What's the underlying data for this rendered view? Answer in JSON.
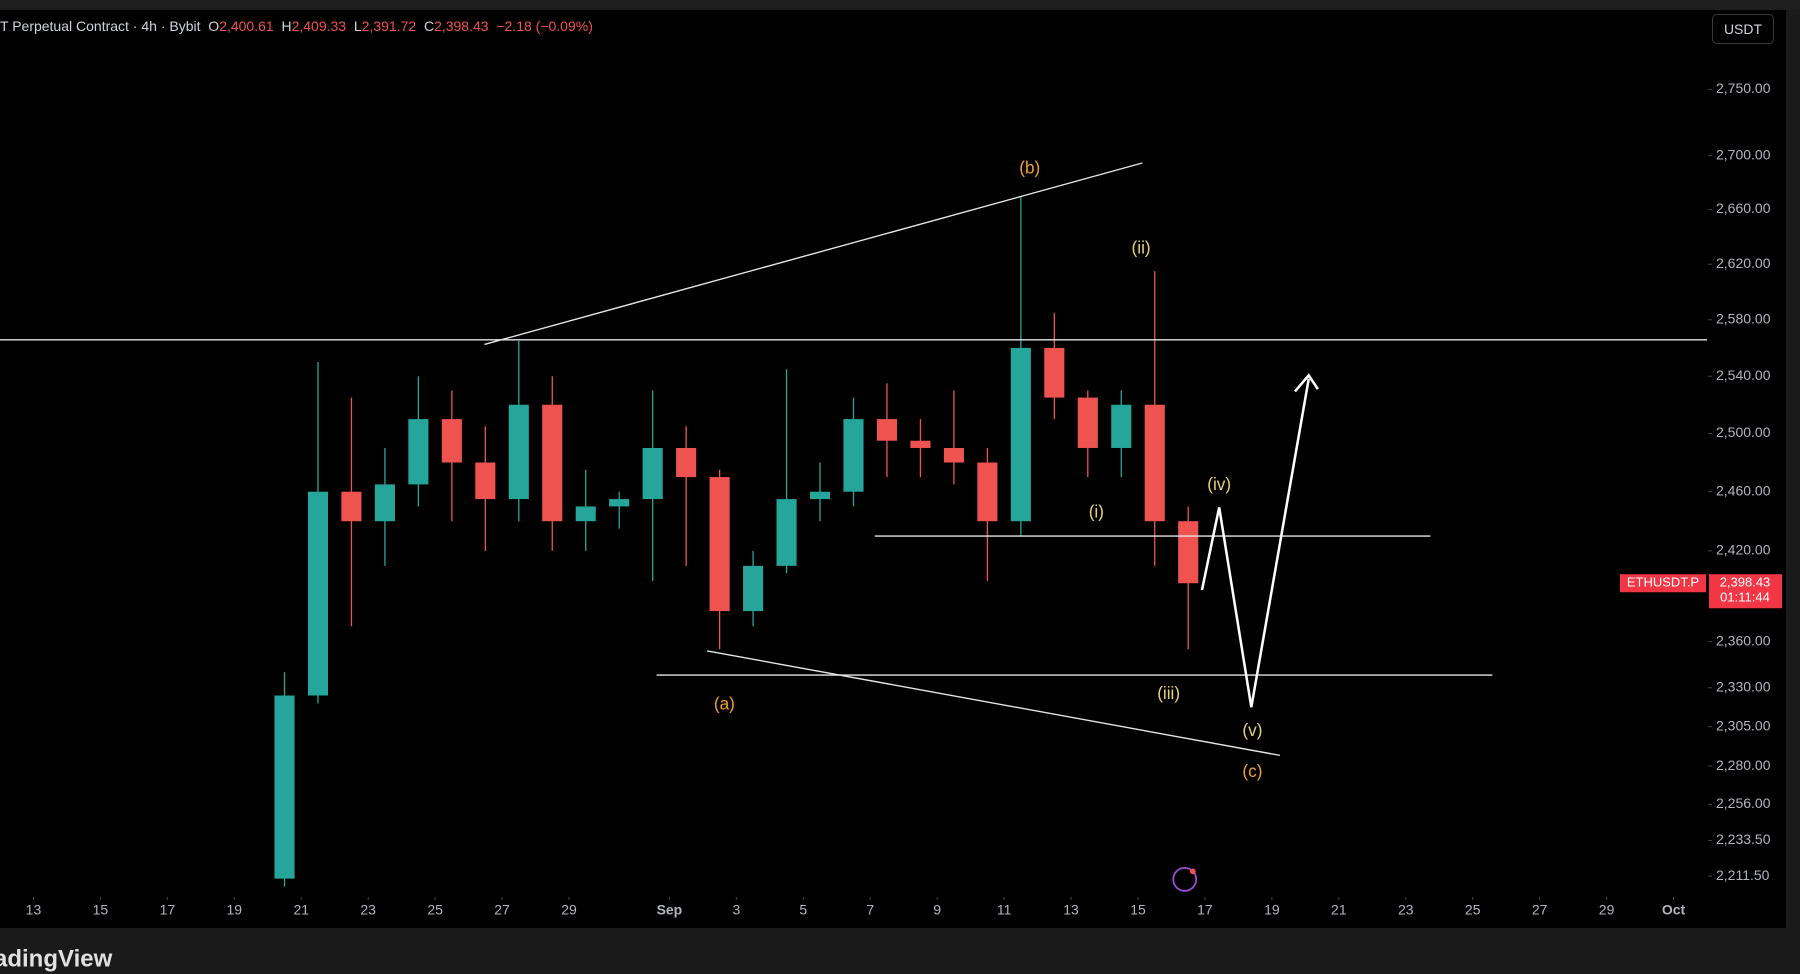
{
  "header": {
    "symbol": "T Perpetual Contract · 4h · Bybit",
    "o_label": "O",
    "open": "2,400.61",
    "h_label": "H",
    "high": "2,409.33",
    "l_label": "L",
    "low": "2,391.72",
    "c_label": "C",
    "close": "2,398.43",
    "change": "−2.18 (−0.09%)"
  },
  "currency_button": "USDT",
  "price_tag": {
    "symbol": "ETHUSDT.P",
    "price": "2,398.43",
    "countdown": "01:11:44"
  },
  "footer": {
    "brand": "adingView"
  },
  "chart_data": {
    "type": "candlestick",
    "log": true,
    "grid": false,
    "up_color": "#26a69a",
    "down_color": "#ef5350",
    "x": [
      "08-20",
      "08-21",
      "08-22",
      "08-23",
      "08-24",
      "08-25",
      "08-26",
      "08-27",
      "08-28",
      "08-29",
      "08-30",
      "08-31",
      "09-01",
      "09-02",
      "09-03",
      "09-04",
      "09-05",
      "09-06",
      "09-07",
      "09-08",
      "09-09",
      "09-10",
      "09-11",
      "09-12",
      "09-13",
      "09-14",
      "09-15",
      "09-16"
    ],
    "open": [
      2210,
      2325,
      2460,
      2440,
      2465,
      2510,
      2480,
      2455,
      2520,
      2440,
      2450,
      2455,
      2490,
      2470,
      2380,
      2410,
      2455,
      2460,
      2510,
      2495,
      2490,
      2480,
      2440,
      2560,
      2525,
      2490,
      2520,
      2440
    ],
    "high": [
      2340,
      2550,
      2525,
      2490,
      2540,
      2530,
      2505,
      2565,
      2540,
      2475,
      2460,
      2530,
      2505,
      2475,
      2420,
      2545,
      2480,
      2525,
      2535,
      2510,
      2530,
      2490,
      2670,
      2585,
      2530,
      2530,
      2615,
      2450
    ],
    "low": [
      2205,
      2320,
      2370,
      2410,
      2450,
      2440,
      2420,
      2440,
      2420,
      2420,
      2435,
      2400,
      2410,
      2355,
      2370,
      2405,
      2440,
      2450,
      2470,
      2470,
      2465,
      2400,
      2430,
      2510,
      2470,
      2470,
      2410,
      2355
    ],
    "close": [
      2325,
      2460,
      2440,
      2465,
      2510,
      2480,
      2455,
      2520,
      2440,
      2450,
      2455,
      2490,
      2470,
      2380,
      2410,
      2455,
      2460,
      2510,
      2495,
      2490,
      2480,
      2440,
      2560,
      2525,
      2490,
      2520,
      2440,
      2398.43
    ],
    "xlim": [
      "08-12",
      "10-02"
    ],
    "xticks": [
      {
        "value": "08-13",
        "label": "13"
      },
      {
        "value": "08-15",
        "label": "15"
      },
      {
        "value": "08-17",
        "label": "17"
      },
      {
        "value": "08-19",
        "label": "19"
      },
      {
        "value": "08-21",
        "label": "21"
      },
      {
        "value": "08-23",
        "label": "23"
      },
      {
        "value": "08-25",
        "label": "25"
      },
      {
        "value": "08-27",
        "label": "27"
      },
      {
        "value": "08-29",
        "label": "29"
      },
      {
        "value": "09-01",
        "label": "Sep"
      },
      {
        "value": "09-03",
        "label": "3"
      },
      {
        "value": "09-05",
        "label": "5"
      },
      {
        "value": "09-07",
        "label": "7"
      },
      {
        "value": "09-09",
        "label": "9"
      },
      {
        "value": "09-11",
        "label": "11"
      },
      {
        "value": "09-13",
        "label": "13"
      },
      {
        "value": "09-15",
        "label": "15"
      },
      {
        "value": "09-17",
        "label": "17"
      },
      {
        "value": "09-19",
        "label": "19"
      },
      {
        "value": "09-21",
        "label": "21"
      },
      {
        "value": "09-23",
        "label": "23"
      },
      {
        "value": "09-25",
        "label": "25"
      },
      {
        "value": "09-27",
        "label": "27"
      },
      {
        "value": "09-29",
        "label": "29"
      },
      {
        "value": "10-01",
        "label": "Oct"
      }
    ],
    "ylim": [
      2200,
      2810
    ],
    "yticks": [
      {
        "value": 2211.5,
        "label": "2,211.50"
      },
      {
        "value": 2233.5,
        "label": "2,233.50"
      },
      {
        "value": 2256,
        "label": "2,256.00"
      },
      {
        "value": 2280,
        "label": "2,280.00"
      },
      {
        "value": 2305,
        "label": "2,305.00"
      },
      {
        "value": 2330,
        "label": "2,330.00"
      },
      {
        "value": 2360,
        "label": "2,360.00"
      },
      {
        "value": 2420,
        "label": "2,420.00"
      },
      {
        "value": 2460,
        "label": "2,460.00"
      },
      {
        "value": 2500,
        "label": "2,500.00"
      },
      {
        "value": 2540,
        "label": "2,540.00"
      },
      {
        "value": 2580,
        "label": "2,580.00"
      },
      {
        "value": 2620,
        "label": "2,620.00"
      },
      {
        "value": 2660,
        "label": "2,660.00"
      },
      {
        "value": 2700,
        "label": "2,700.00"
      },
      {
        "value": 2750,
        "label": "2,750.00"
      }
    ],
    "annotations": [
      "(b)",
      "(ii)",
      "(i)",
      "(iv)",
      "(iii)",
      "(v)",
      "(a)",
      "(c)"
    ]
  }
}
